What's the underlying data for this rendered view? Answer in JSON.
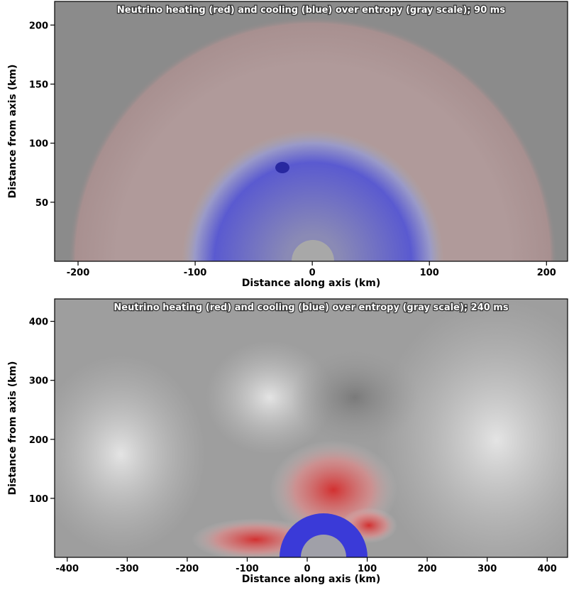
{
  "chart_data": [
    {
      "type": "image",
      "title": "Neutrino heating (red) and cooling (blue) over entropy (gray scale); 90 ms",
      "x_label": "Distance along axis (km)",
      "y_label": "Distance from axis (km)",
      "xlim": [
        -220,
        218
      ],
      "ylim": [
        0,
        220
      ],
      "xticks": [
        -200,
        -100,
        0,
        100,
        200
      ],
      "yticks": [
        50,
        100,
        150,
        200
      ]
    },
    {
      "type": "image",
      "title": "Neutrino heating (red) and cooling (blue) over entropy (gray scale); 240 ms",
      "x_label": "Distance along axis (km)",
      "y_label": "Distance from axis (km)",
      "xlim": [
        -421,
        434
      ],
      "ylim": [
        0,
        438
      ],
      "xticks": [
        -400,
        -300,
        -200,
        -100,
        0,
        100,
        200,
        300,
        400
      ],
      "yticks": [
        100,
        200,
        300,
        400
      ]
    }
  ]
}
